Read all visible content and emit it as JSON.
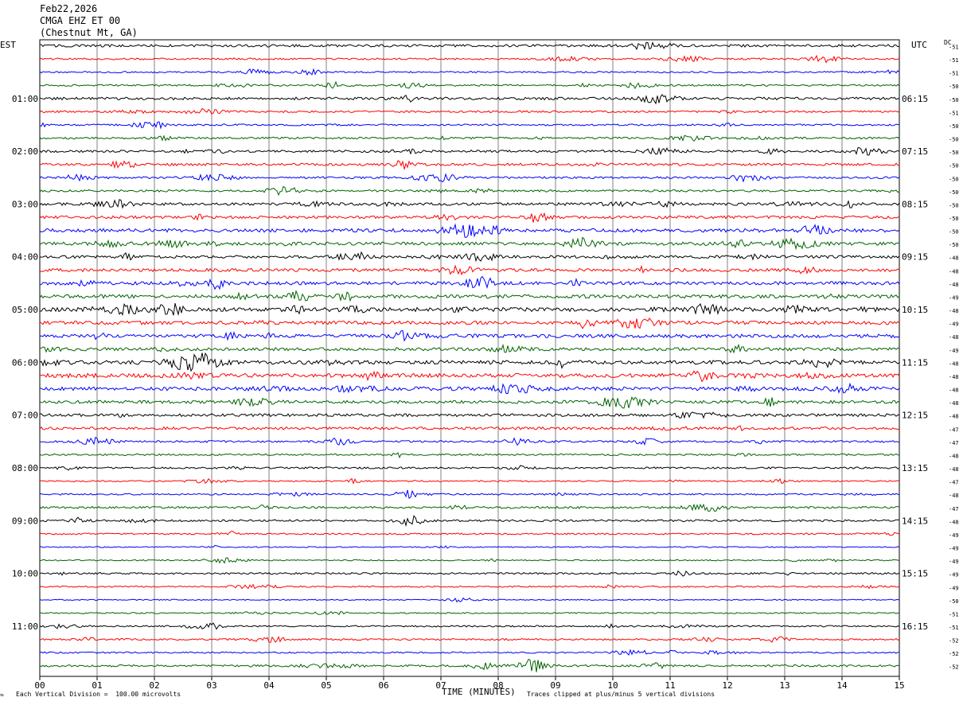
{
  "header": {
    "date": "Feb22,2026",
    "station": "CMGA EHZ ET 00",
    "location": "(Chestnut Mt, GA)"
  },
  "left_tz": "EST",
  "right_tz": "UTC",
  "dc_label": "DC",
  "footer": {
    "left_note": "Each Vertical Division =  100.00 microvolts",
    "x_title": "TIME (MINUTES)",
    "right_note": "Traces clipped at plus/minus 5 vertical divisions"
  },
  "colors": {
    "cycle": [
      "#000000",
      "#ff0000",
      "#0000ff",
      "#006400"
    ],
    "grid": "#808080"
  },
  "chart_data": {
    "type": "line",
    "title": "CMGA EHZ ET 00 (Chestnut Mt, GA)",
    "xlabel": "TIME (MINUTES)",
    "xlim": [
      0,
      15
    ],
    "x_ticks": [
      "00",
      "01",
      "02",
      "03",
      "04",
      "05",
      "06",
      "07",
      "08",
      "09",
      "10",
      "11",
      "12",
      "13",
      "14",
      "15"
    ],
    "rows_per_hour": 4,
    "minutes_per_row": 15,
    "left_hour_labels": [
      "01:00",
      "02:00",
      "03:00",
      "04:00",
      "05:00",
      "06:00",
      "07:00",
      "08:00",
      "09:00",
      "10:00",
      "11:00"
    ],
    "right_hour_labels": [
      "06:15",
      "07:15",
      "08:15",
      "09:15",
      "10:15",
      "11:15",
      "12:15",
      "13:15",
      "14:15",
      "15:15",
      "16:15"
    ],
    "dc_offsets": [
      -51,
      -51,
      -51,
      -50,
      -50,
      -51,
      -50,
      -50,
      -50,
      -50,
      -50,
      -50,
      -50,
      -50,
      -50,
      -50,
      -48,
      -48,
      -48,
      -49,
      -48,
      -49,
      -48,
      -49,
      -48,
      -48,
      -48,
      -48,
      -48,
      -47,
      -47,
      -48,
      -48,
      -47,
      -48,
      -47,
      -48,
      -49,
      -49,
      -49,
      -49,
      -49,
      -50,
      -51,
      -51,
      -52,
      -52,
      -52
    ],
    "row_activity": [
      1.4,
      1.0,
      0.9,
      1.0,
      1.5,
      1.1,
      1.0,
      1.1,
      1.3,
      1.4,
      1.2,
      1.2,
      1.5,
      1.6,
      2.0,
      1.8,
      1.6,
      1.8,
      1.9,
      2.0,
      2.3,
      2.0,
      2.0,
      1.8,
      2.2,
      2.3,
      2.1,
      1.7,
      1.6,
      1.5,
      1.1,
      1.0,
      1.0,
      0.8,
      0.9,
      1.2,
      1.1,
      0.9,
      0.6,
      0.7,
      1.0,
      0.8,
      0.6,
      0.7,
      0.9,
      1.0,
      0.8,
      1.2
    ]
  }
}
